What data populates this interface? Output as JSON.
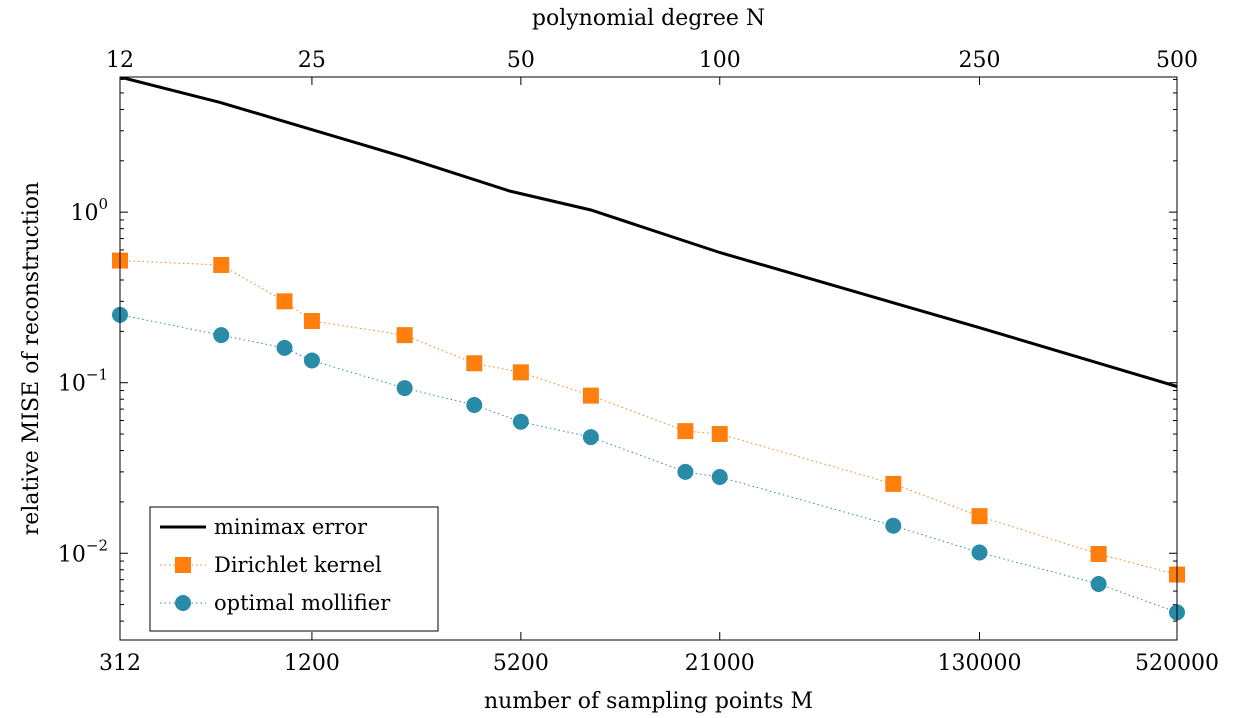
{
  "chart_data": {
    "type": "line",
    "title": "",
    "xlabel": "number of sampling points M",
    "x2label": "polynomial degree N",
    "ylabel": "relative MISE of reconstruction",
    "xscale": "log",
    "yscale": "log",
    "xlim": [
      312,
      520000
    ],
    "ylim": [
      0.0031,
      6.2
    ],
    "x_ticks": [
      312,
      1200,
      5200,
      21000,
      130000,
      520000
    ],
    "x_tick_labels": [
      "312",
      "1200",
      "5200",
      "21000",
      "130000",
      "520000"
    ],
    "x2_ticks": [
      312,
      1200,
      5200,
      21000,
      130000,
      520000
    ],
    "x2_tick_labels": [
      "12",
      "25",
      "50",
      "100",
      "250",
      "500"
    ],
    "y_tick_labels": [
      {
        "base": "10",
        "exp": "0",
        "value": 1
      },
      {
        "base": "10",
        "exp": "−1",
        "value": 0.1
      },
      {
        "base": "10",
        "exp": "−2",
        "value": 0.01
      }
    ],
    "legend_position": "bottom-left",
    "grid": false,
    "series": [
      {
        "name": "minimax error",
        "style": "solid-line",
        "color": "#000000",
        "x": [
          312,
          630,
          2300,
          4800,
          8500,
          21000,
          130000,
          520000
        ],
        "y": [
          6.2,
          4.4,
          2.1,
          1.33,
          1.03,
          0.58,
          0.21,
          0.095
        ]
      },
      {
        "name": "Dirichlet kernel",
        "style": "dotted-square",
        "color": "#ff7f0e",
        "x": [
          312,
          635,
          990,
          1200,
          2300,
          3750,
          5200,
          8500,
          16500,
          21000,
          71000,
          130000,
          300000,
          520000
        ],
        "y": [
          0.52,
          0.49,
          0.3,
          0.23,
          0.19,
          0.13,
          0.115,
          0.084,
          0.052,
          0.05,
          0.0255,
          0.0165,
          0.0099,
          0.0075
        ]
      },
      {
        "name": "optimal mollifier",
        "style": "dotted-circle",
        "color": "#2a8ba8",
        "x": [
          312,
          635,
          990,
          1200,
          2300,
          3750,
          5200,
          8500,
          16500,
          21000,
          71000,
          130000,
          300000,
          520000
        ],
        "y": [
          0.25,
          0.19,
          0.16,
          0.135,
          0.093,
          0.074,
          0.059,
          0.048,
          0.03,
          0.028,
          0.0145,
          0.0101,
          0.0066,
          0.0045
        ]
      }
    ]
  }
}
